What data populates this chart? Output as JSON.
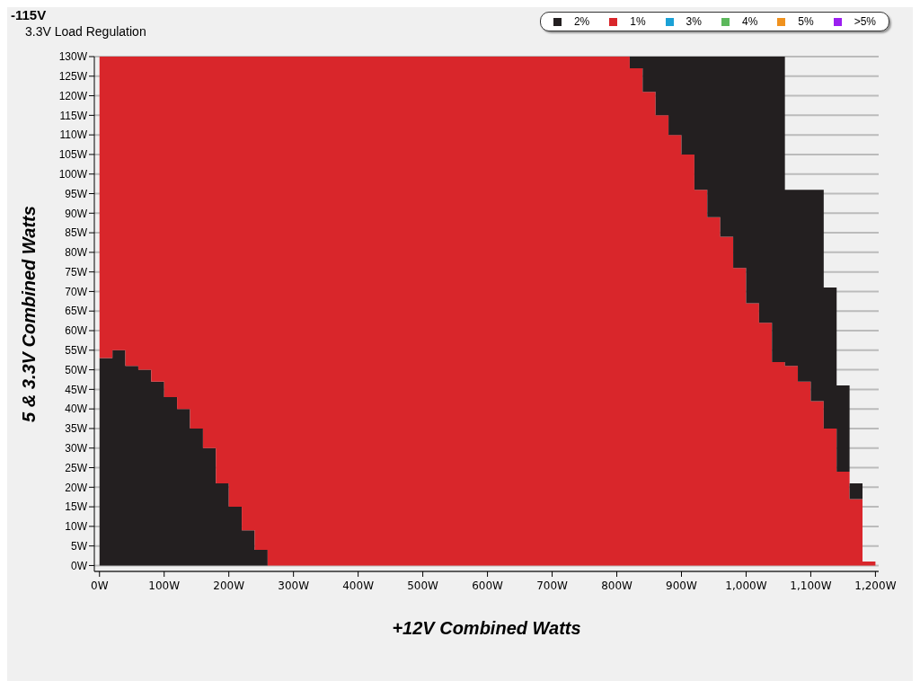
{
  "chart_data": {
    "type": "area",
    "title": "-115V",
    "subtitle": "3.3V Load Regulation",
    "xlabel": "+12V Combined Watts",
    "ylabel": "5 & 3.3V Combined Watts",
    "x": [
      0,
      20,
      40,
      60,
      80,
      100,
      120,
      140,
      160,
      180,
      200,
      220,
      240,
      260,
      280,
      300,
      320,
      340,
      360,
      380,
      400,
      420,
      440,
      460,
      480,
      500,
      520,
      540,
      560,
      580,
      600,
      620,
      640,
      660,
      680,
      700,
      720,
      740,
      760,
      780,
      800,
      820,
      840,
      860,
      880,
      900,
      920,
      940,
      960,
      980,
      1000,
      1020,
      1040,
      1060,
      1080,
      1100,
      1120,
      1140,
      1160,
      1180,
      1200
    ],
    "series": [
      {
        "name": "2%",
        "color": "#231f20",
        "values": [
          53,
          55,
          51,
          50,
          47,
          43,
          40,
          35,
          30,
          21,
          15,
          9,
          4,
          0,
          0,
          0,
          0,
          0,
          0,
          0,
          0,
          0,
          0,
          0,
          0,
          0,
          0,
          0,
          0,
          0,
          0,
          0,
          0,
          0,
          0,
          0,
          0,
          0,
          0,
          0,
          0,
          0,
          0,
          0,
          0,
          0,
          0,
          0,
          0,
          0,
          0,
          0,
          0,
          0,
          0,
          0,
          0,
          0,
          0,
          0,
          0
        ]
      },
      {
        "name": "1%",
        "color": "#d9262b",
        "values": [
          77,
          75,
          79,
          80,
          83,
          87,
          90,
          95,
          100,
          109,
          115,
          121,
          126,
          130,
          130,
          130,
          130,
          130,
          130,
          130,
          130,
          130,
          130,
          130,
          130,
          130,
          130,
          130,
          130,
          130,
          130,
          130,
          130,
          130,
          130,
          130,
          130,
          130,
          130,
          130,
          130,
          127,
          121,
          115,
          110,
          105,
          96,
          89,
          84,
          76,
          67,
          62,
          52,
          51,
          47,
          42,
          35,
          24,
          17,
          1,
          1
        ]
      },
      {
        "color": "#231f20",
        "values": [
          0,
          0,
          0,
          0,
          0,
          0,
          0,
          0,
          0,
          0,
          0,
          0,
          0,
          0,
          0,
          0,
          0,
          0,
          0,
          0,
          0,
          0,
          0,
          0,
          0,
          0,
          0,
          0,
          0,
          0,
          0,
          0,
          0,
          0,
          0,
          0,
          0,
          0,
          0,
          0,
          0,
          3,
          9,
          15,
          20,
          25,
          34,
          41,
          46,
          54,
          63,
          68,
          78,
          45,
          49,
          54,
          36,
          22,
          4,
          0,
          0
        ]
      },
      {
        "name": "3%",
        "color": "#1ba1d6",
        "values": [
          null,
          null,
          null,
          null,
          null,
          null,
          null,
          null,
          null,
          null,
          null,
          null,
          null,
          null,
          null,
          null,
          null,
          null,
          null,
          null,
          null,
          null,
          null,
          null,
          null,
          null,
          null,
          null,
          null,
          null,
          null,
          null,
          null,
          null,
          null,
          null,
          null,
          null,
          null,
          null,
          null,
          null,
          null,
          null,
          null,
          null,
          null,
          null,
          null,
          null,
          null,
          null,
          null,
          null,
          null,
          null,
          null,
          null,
          null,
          null,
          null
        ]
      },
      {
        "name": "4%",
        "color": "#5cb85c",
        "values": [
          null,
          null,
          null,
          null,
          null,
          null,
          null,
          null,
          null,
          null,
          null,
          null,
          null,
          null,
          null,
          null,
          null,
          null,
          null,
          null,
          null,
          null,
          null,
          null,
          null,
          null,
          null,
          null,
          null,
          null,
          null,
          null,
          null,
          null,
          null,
          null,
          null,
          null,
          null,
          null,
          null,
          null,
          null,
          null,
          null,
          null,
          null,
          null,
          null,
          null,
          null,
          null,
          null,
          null,
          null,
          null,
          null,
          null,
          null,
          null,
          null
        ]
      },
      {
        "name": "5%",
        "color": "#f0921e",
        "values": [
          null,
          null,
          null,
          null,
          null,
          null,
          null,
          null,
          null,
          null,
          null,
          null,
          null,
          null,
          null,
          null,
          null,
          null,
          null,
          null,
          null,
          null,
          null,
          null,
          null,
          null,
          null,
          null,
          null,
          null,
          null,
          null,
          null,
          null,
          null,
          null,
          null,
          null,
          null,
          null,
          null,
          null,
          null,
          null,
          null,
          null,
          null,
          null,
          null,
          null,
          null,
          null,
          null,
          null,
          null,
          null,
          null,
          null,
          null,
          null,
          null
        ]
      },
      {
        "name": ">5%",
        "color": "#9b1ff0",
        "values": [
          null,
          null,
          null,
          null,
          null,
          null,
          null,
          null,
          null,
          null,
          null,
          null,
          null,
          null,
          null,
          null,
          null,
          null,
          null,
          null,
          null,
          null,
          null,
          null,
          null,
          null,
          null,
          null,
          null,
          null,
          null,
          null,
          null,
          null,
          null,
          null,
          null,
          null,
          null,
          null,
          null,
          null,
          null,
          null,
          null,
          null,
          null,
          null,
          null,
          null,
          null,
          null,
          null,
          null,
          null,
          null,
          null,
          null,
          null,
          null,
          null
        ]
      }
    ],
    "xlim": [
      -8,
      1205
    ],
    "ylim": [
      -1.5,
      130
    ],
    "xticks": [
      {
        "value": 0,
        "label": "0W"
      },
      {
        "value": 100,
        "label": "100W"
      },
      {
        "value": 200,
        "label": "200W"
      },
      {
        "value": 300,
        "label": "300W"
      },
      {
        "value": 400,
        "label": "400W"
      },
      {
        "value": 500,
        "label": "500W"
      },
      {
        "value": 600,
        "label": "600W"
      },
      {
        "value": 700,
        "label": "700W"
      },
      {
        "value": 800,
        "label": "800W"
      },
      {
        "value": 900,
        "label": "900W"
      },
      {
        "value": 1000,
        "label": "1,000W"
      },
      {
        "value": 1100,
        "label": "1,100W"
      },
      {
        "value": 1200,
        "label": "1,200W"
      }
    ],
    "yticks": [
      {
        "value": 0,
        "label": "0W"
      },
      {
        "value": 5,
        "label": "5W"
      },
      {
        "value": 10,
        "label": "10W"
      },
      {
        "value": 15,
        "label": "15W"
      },
      {
        "value": 20,
        "label": "20W"
      },
      {
        "value": 25,
        "label": "25W"
      },
      {
        "value": 30,
        "label": "30W"
      },
      {
        "value": 35,
        "label": "35W"
      },
      {
        "value": 40,
        "label": "40W"
      },
      {
        "value": 45,
        "label": "45W"
      },
      {
        "value": 50,
        "label": "50W"
      },
      {
        "value": 55,
        "label": "55W"
      },
      {
        "value": 60,
        "label": "60W"
      },
      {
        "value": 65,
        "label": "65W"
      },
      {
        "value": 70,
        "label": "70W"
      },
      {
        "value": 75,
        "label": "75W"
      },
      {
        "value": 80,
        "label": "80W"
      },
      {
        "value": 85,
        "label": "85W"
      },
      {
        "value": 90,
        "label": "90W"
      },
      {
        "value": 95,
        "label": "95W"
      },
      {
        "value": 100,
        "label": "100W"
      },
      {
        "value": 105,
        "label": "105W"
      },
      {
        "value": 110,
        "label": "110W"
      },
      {
        "value": 115,
        "label": "115W"
      },
      {
        "value": 120,
        "label": "120W"
      },
      {
        "value": 125,
        "label": "125W"
      },
      {
        "value": 130,
        "label": "130W"
      }
    ],
    "stacked": true,
    "grid": "y",
    "legend": "top right"
  }
}
